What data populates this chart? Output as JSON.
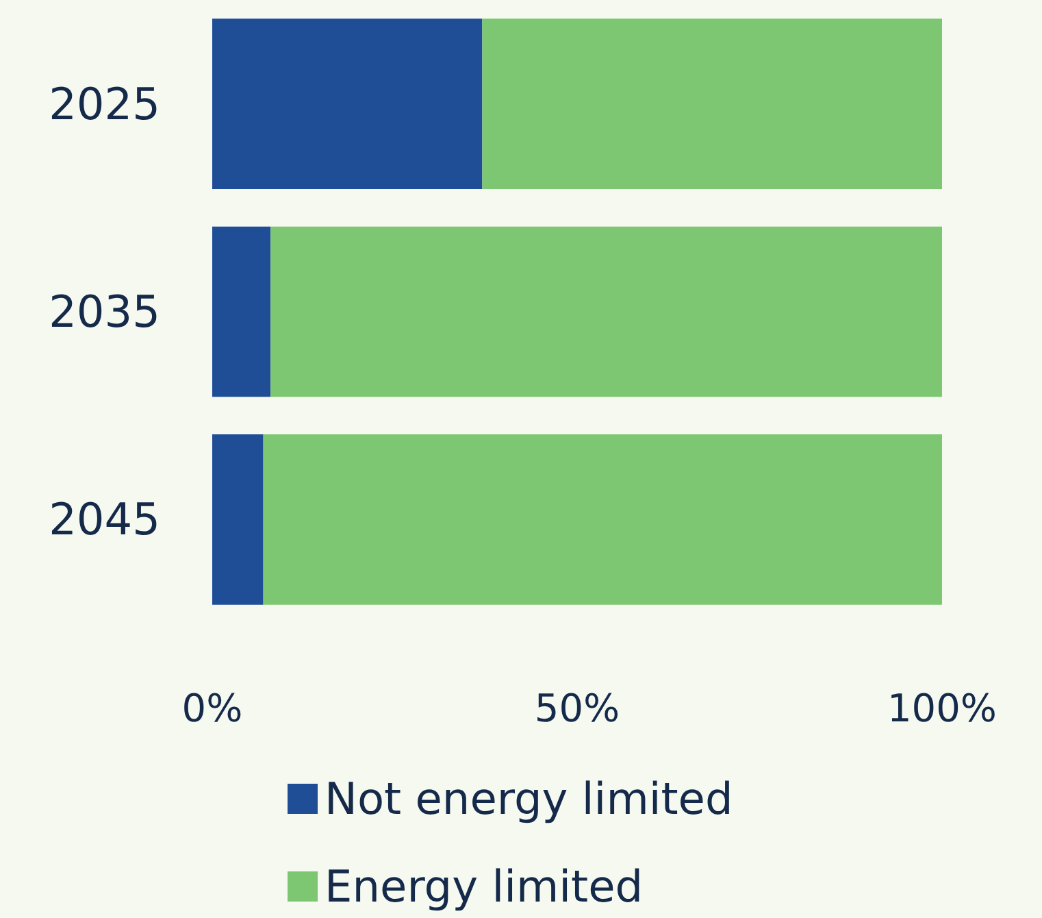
{
  "chart_data": {
    "type": "bar",
    "orientation": "horizontal",
    "stacked": true,
    "categories": [
      "2025",
      "2035",
      "2045"
    ],
    "series": [
      {
        "name": "Not energy limited",
        "color": "#1f4e96",
        "values": [
          37,
          8,
          7
        ]
      },
      {
        "name": "Energy limited",
        "color": "#7dc672",
        "values": [
          63,
          92,
          93
        ]
      }
    ],
    "xlim": [
      0,
      100
    ],
    "xticks": [
      {
        "value": 0,
        "label": "0%"
      },
      {
        "value": 50,
        "label": "50%"
      },
      {
        "value": 100,
        "label": "100%"
      }
    ],
    "grid": false,
    "legend": "bottom"
  }
}
